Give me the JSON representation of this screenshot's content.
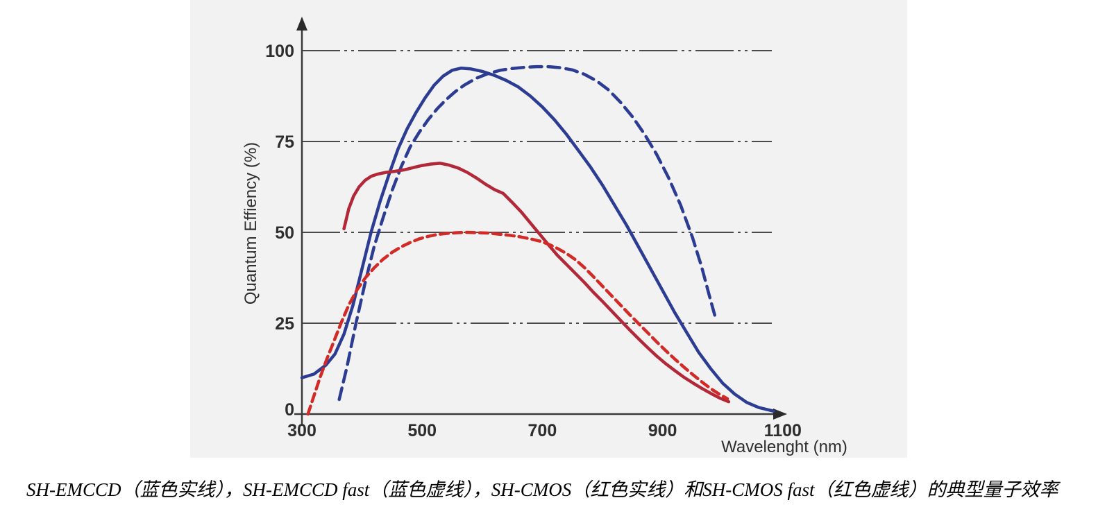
{
  "caption": "SH-EMCCD（蓝色实线），SH-EMCCD fast（蓝色虚线），SH-CMOS（红色实线）和SH-CMOS fast（红色虚线）的典型量子效率",
  "colors": {
    "panel_bg": "#f2f2f2",
    "axis": "#3a3a3a",
    "grid": "#4a4a4a",
    "blue": "#2b3c92",
    "red_solid": "#b32838",
    "red_dashed": "#d22b27"
  },
  "chart_data": {
    "type": "line",
    "title": "",
    "xlabel": "Wavelenght (nm)",
    "ylabel": "Quantum Effiency (%)",
    "x_ticks": [
      300,
      500,
      700,
      900,
      1100
    ],
    "y_ticks": [
      0,
      25,
      50,
      75,
      100
    ],
    "xlim": [
      300,
      1100
    ],
    "ylim": [
      0,
      100
    ],
    "grid": "horizontal, dash-dot-dot style",
    "legend_position": "none (described in caption below figure)",
    "series": [
      {
        "name": "SH-EMCCD",
        "color": "#2b3c92",
        "line_style": "solid",
        "dash": "",
        "points": [
          [
            300,
            10
          ],
          [
            320,
            11
          ],
          [
            340,
            13.5
          ],
          [
            355,
            16.5
          ],
          [
            370,
            22
          ],
          [
            385,
            30
          ],
          [
            400,
            40
          ],
          [
            415,
            50
          ],
          [
            430,
            58.5
          ],
          [
            445,
            66
          ],
          [
            460,
            73
          ],
          [
            475,
            78.5
          ],
          [
            490,
            83
          ],
          [
            505,
            87
          ],
          [
            520,
            90.5
          ],
          [
            535,
            93
          ],
          [
            550,
            94.6
          ],
          [
            565,
            95.2
          ],
          [
            580,
            95
          ],
          [
            600,
            94.3
          ],
          [
            620,
            93.2
          ],
          [
            640,
            91.8
          ],
          [
            660,
            90
          ],
          [
            680,
            87.5
          ],
          [
            700,
            84.5
          ],
          [
            720,
            81
          ],
          [
            740,
            77
          ],
          [
            760,
            72.5
          ],
          [
            780,
            68
          ],
          [
            800,
            63
          ],
          [
            820,
            57.5
          ],
          [
            840,
            52
          ],
          [
            860,
            46
          ],
          [
            880,
            40
          ],
          [
            900,
            34
          ],
          [
            920,
            28
          ],
          [
            940,
            22.5
          ],
          [
            960,
            17
          ],
          [
            980,
            12.5
          ],
          [
            1000,
            8.5
          ],
          [
            1020,
            5.5
          ],
          [
            1040,
            3.2
          ],
          [
            1060,
            1.8
          ],
          [
            1085,
            0.8
          ]
        ]
      },
      {
        "name": "SH-EMCCD fast",
        "color": "#2b3c92",
        "line_style": "dashed",
        "dash": "17 9",
        "points": [
          [
            362,
            4
          ],
          [
            375,
            13
          ],
          [
            390,
            25
          ],
          [
            405,
            36
          ],
          [
            420,
            46
          ],
          [
            435,
            54
          ],
          [
            450,
            61.5
          ],
          [
            465,
            68
          ],
          [
            480,
            73.5
          ],
          [
            495,
            77.5
          ],
          [
            510,
            81
          ],
          [
            525,
            84
          ],
          [
            540,
            86.5
          ],
          [
            555,
            88.7
          ],
          [
            570,
            90.5
          ],
          [
            590,
            92.4
          ],
          [
            610,
            93.7
          ],
          [
            630,
            94.6
          ],
          [
            650,
            95.1
          ],
          [
            670,
            95.4
          ],
          [
            690,
            95.6
          ],
          [
            710,
            95.6
          ],
          [
            730,
            95.3
          ],
          [
            750,
            94.7
          ],
          [
            770,
            93.5
          ],
          [
            790,
            91.7
          ],
          [
            810,
            89.2
          ],
          [
            830,
            85.8
          ],
          [
            850,
            81.8
          ],
          [
            870,
            77
          ],
          [
            890,
            71.5
          ],
          [
            910,
            65
          ],
          [
            930,
            57.5
          ],
          [
            950,
            48.5
          ],
          [
            965,
            40.5
          ],
          [
            978,
            32.5
          ],
          [
            988,
            26.5
          ]
        ]
      },
      {
        "name": "SH-CMOS",
        "color": "#b32838",
        "line_style": "solid",
        "dash": "",
        "points": [
          [
            370,
            51
          ],
          [
            378,
            56.5
          ],
          [
            386,
            60
          ],
          [
            395,
            62.5
          ],
          [
            405,
            64.3
          ],
          [
            415,
            65.4
          ],
          [
            425,
            66
          ],
          [
            440,
            66.5
          ],
          [
            455,
            66.8
          ],
          [
            470,
            67.2
          ],
          [
            485,
            67.8
          ],
          [
            500,
            68.4
          ],
          [
            515,
            68.8
          ],
          [
            530,
            69
          ],
          [
            545,
            68.5
          ],
          [
            560,
            67.7
          ],
          [
            575,
            66.5
          ],
          [
            590,
            65
          ],
          [
            605,
            63.3
          ],
          [
            620,
            61.8
          ],
          [
            635,
            60.7
          ],
          [
            650,
            58.2
          ],
          [
            665,
            55.6
          ],
          [
            680,
            52.6
          ],
          [
            695,
            49.6
          ],
          [
            710,
            46.6
          ],
          [
            725,
            43.7
          ],
          [
            740,
            41.2
          ],
          [
            755,
            38.7
          ],
          [
            770,
            36.2
          ],
          [
            785,
            33.5
          ],
          [
            800,
            31
          ],
          [
            815,
            28.4
          ],
          [
            830,
            25.8
          ],
          [
            845,
            23.2
          ],
          [
            860,
            20.7
          ],
          [
            875,
            18.3
          ],
          [
            890,
            16
          ],
          [
            905,
            13.9
          ],
          [
            920,
            12
          ],
          [
            935,
            10.2
          ],
          [
            950,
            8.6
          ],
          [
            965,
            7.1
          ],
          [
            980,
            5.7
          ],
          [
            995,
            4.4
          ],
          [
            1010,
            3.4
          ]
        ]
      },
      {
        "name": "SH-CMOS fast",
        "color": "#d22b27",
        "line_style": "dashed",
        "dash": "12 7",
        "points": [
          [
            310,
            0
          ],
          [
            320,
            5
          ],
          [
            330,
            10
          ],
          [
            340,
            14.5
          ],
          [
            352,
            19.5
          ],
          [
            365,
            25
          ],
          [
            378,
            30
          ],
          [
            392,
            34.3
          ],
          [
            406,
            37.6
          ],
          [
            420,
            40.2
          ],
          [
            435,
            42.6
          ],
          [
            450,
            44.5
          ],
          [
            465,
            46
          ],
          [
            480,
            47.2
          ],
          [
            495,
            48.2
          ],
          [
            510,
            48.9
          ],
          [
            525,
            49.4
          ],
          [
            540,
            49.7
          ],
          [
            558,
            49.9
          ],
          [
            575,
            50
          ],
          [
            592,
            49.9
          ],
          [
            610,
            49.8
          ],
          [
            628,
            49.5
          ],
          [
            645,
            49.2
          ],
          [
            662,
            48.8
          ],
          [
            680,
            48.2
          ],
          [
            698,
            47.5
          ],
          [
            712,
            46.6
          ],
          [
            726,
            45.5
          ],
          [
            740,
            44.2
          ],
          [
            755,
            42.5
          ],
          [
            770,
            40.3
          ],
          [
            785,
            37.8
          ],
          [
            800,
            35.2
          ],
          [
            815,
            32.6
          ],
          [
            830,
            30
          ],
          [
            845,
            27.4
          ],
          [
            860,
            24.9
          ],
          [
            875,
            22.4
          ],
          [
            890,
            19.9
          ],
          [
            905,
            17.5
          ],
          [
            920,
            15.2
          ],
          [
            935,
            13
          ],
          [
            950,
            10.9
          ],
          [
            965,
            8.9
          ],
          [
            980,
            7
          ],
          [
            995,
            5.4
          ],
          [
            1008,
            4.2
          ]
        ]
      }
    ]
  }
}
